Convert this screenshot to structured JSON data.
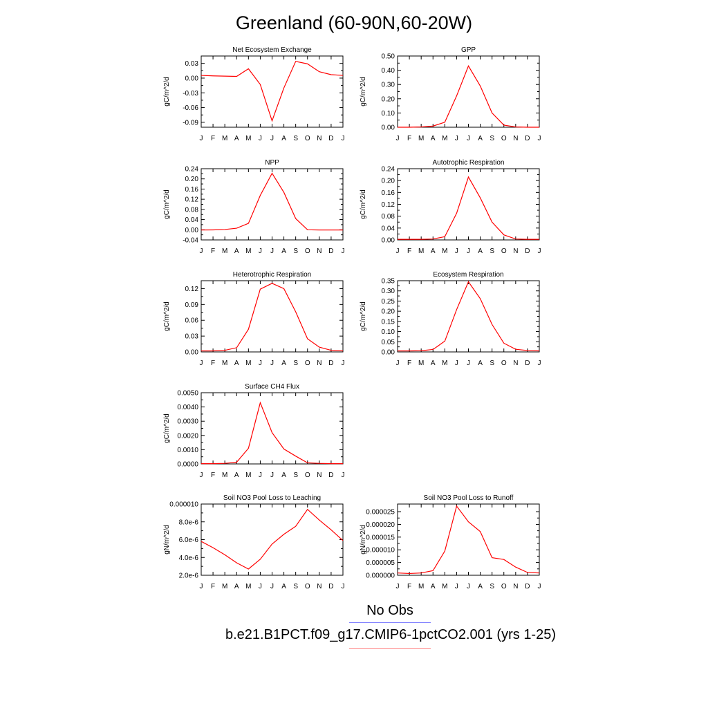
{
  "page": {
    "title": "Greenland (60-90N,60-20W)",
    "legend": {
      "obs_label": "No Obs",
      "obs_color": "#7f7fff",
      "case_label": "b.e21.B1PCT.f09_g17.CMIP6-1pctCO2.001 (yrs 1-25)",
      "case_color": "#ff7f7f"
    }
  },
  "chart_data": [
    {
      "type": "line",
      "title": "Net Ecosystem Exchange",
      "ylabel": "gC/m^2/d",
      "x": [
        "J",
        "F",
        "M",
        "A",
        "M",
        "J",
        "J",
        "A",
        "S",
        "O",
        "N",
        "D",
        "J"
      ],
      "ylim": [
        -0.1,
        0.045
      ],
      "yticks": [
        0.03,
        0.0,
        -0.03,
        -0.06,
        -0.09
      ],
      "yticklabels": [
        "0.03",
        "0.00",
        "-0.03",
        "-0.06",
        "-0.09"
      ],
      "series": [
        {
          "color": "#ff0000",
          "values": [
            0.0055,
            0.0045,
            0.004,
            0.0035,
            0.019,
            -0.013,
            -0.087,
            -0.02,
            0.034,
            0.029,
            0.013,
            0.007,
            0.0055
          ]
        }
      ]
    },
    {
      "type": "line",
      "title": "GPP",
      "ylabel": "gC/m^2/d",
      "x": [
        "J",
        "F",
        "M",
        "A",
        "M",
        "J",
        "J",
        "A",
        "S",
        "O",
        "N",
        "D",
        "J"
      ],
      "ylim": [
        0.0,
        0.5
      ],
      "yticks": [
        0.0,
        0.1,
        0.2,
        0.3,
        0.4,
        0.5
      ],
      "yticklabels": [
        "0.00",
        "0.10",
        "0.20",
        "0.30",
        "0.40",
        "0.50"
      ],
      "series": [
        {
          "color": "#ff0000",
          "values": [
            0.0,
            0.0,
            0.002,
            0.008,
            0.035,
            0.22,
            0.43,
            0.29,
            0.1,
            0.015,
            0.002,
            0.0,
            0.0
          ]
        }
      ]
    },
    {
      "type": "line",
      "title": "NPP",
      "ylabel": "gC/m^2/d",
      "x": [
        "J",
        "F",
        "M",
        "A",
        "M",
        "J",
        "J",
        "A",
        "S",
        "O",
        "N",
        "D",
        "J"
      ],
      "ylim": [
        -0.04,
        0.24
      ],
      "yticks": [
        -0.04,
        0.0,
        0.04,
        0.08,
        0.12,
        0.16,
        0.2,
        0.24
      ],
      "yticklabels": [
        "-0.04",
        "0.00",
        "0.04",
        "0.08",
        "0.12",
        "0.16",
        "0.20",
        "0.24"
      ],
      "series": [
        {
          "color": "#ff0000",
          "values": [
            -0.001,
            -0.0005,
            0.001,
            0.006,
            0.025,
            0.135,
            0.222,
            0.147,
            0.044,
            0.0,
            -0.001,
            -0.001,
            -0.001
          ]
        }
      ]
    },
    {
      "type": "line",
      "title": "Autotrophic Respiration",
      "ylabel": "gC/m^2/d",
      "x": [
        "J",
        "F",
        "M",
        "A",
        "M",
        "J",
        "J",
        "A",
        "S",
        "O",
        "N",
        "D",
        "J"
      ],
      "ylim": [
        0.0,
        0.24
      ],
      "yticks": [
        0.0,
        0.04,
        0.08,
        0.12,
        0.16,
        0.2,
        0.24
      ],
      "yticklabels": [
        "0.00",
        "0.04",
        "0.08",
        "0.12",
        "0.16",
        "0.20",
        "0.24"
      ],
      "series": [
        {
          "color": "#ff0000",
          "values": [
            0.002,
            0.002,
            0.002,
            0.003,
            0.011,
            0.09,
            0.212,
            0.142,
            0.06,
            0.017,
            0.003,
            0.002,
            0.002
          ]
        }
      ]
    },
    {
      "type": "line",
      "title": "Heterotrophic Respiration",
      "ylabel": "gC/m^2/d",
      "x": [
        "J",
        "F",
        "M",
        "A",
        "M",
        "J",
        "J",
        "A",
        "S",
        "O",
        "N",
        "D",
        "J"
      ],
      "ylim": [
        0.0,
        0.135
      ],
      "yticks": [
        0.0,
        0.03,
        0.06,
        0.09,
        0.12
      ],
      "yticklabels": [
        "0.00",
        "0.03",
        "0.06",
        "0.09",
        "0.12"
      ],
      "series": [
        {
          "color": "#ff0000",
          "values": [
            0.002,
            0.002,
            0.003,
            0.008,
            0.043,
            0.119,
            0.13,
            0.12,
            0.076,
            0.025,
            0.009,
            0.003,
            0.002
          ]
        }
      ]
    },
    {
      "type": "line",
      "title": "Ecosystem Respiration",
      "ylabel": "gC/m^2/d",
      "x": [
        "J",
        "F",
        "M",
        "A",
        "M",
        "J",
        "J",
        "A",
        "S",
        "O",
        "N",
        "D",
        "J"
      ],
      "ylim": [
        0.0,
        0.35
      ],
      "yticks": [
        0.0,
        0.05,
        0.1,
        0.15,
        0.2,
        0.25,
        0.3,
        0.35
      ],
      "yticklabels": [
        "0.00",
        "0.05",
        "0.10",
        "0.15",
        "0.20",
        "0.25",
        "0.30",
        "0.35"
      ],
      "series": [
        {
          "color": "#ff0000",
          "values": [
            0.005,
            0.005,
            0.006,
            0.012,
            0.053,
            0.208,
            0.345,
            0.262,
            0.135,
            0.043,
            0.013,
            0.007,
            0.005
          ]
        }
      ]
    },
    {
      "type": "line",
      "title": "Surface CH4 Flux",
      "ylabel": "gC/m^2/d",
      "x": [
        "J",
        "F",
        "M",
        "A",
        "M",
        "J",
        "J",
        "A",
        "S",
        "O",
        "N",
        "D",
        "J"
      ],
      "ylim": [
        0.0,
        0.005
      ],
      "yticks": [
        0.0,
        0.001,
        0.002,
        0.003,
        0.004,
        0.005
      ],
      "yticklabels": [
        "0.0000",
        "0.0010",
        "0.0020",
        "0.0030",
        "0.0040",
        "0.0050"
      ],
      "series": [
        {
          "color": "#ff0000",
          "values": [
            2e-05,
            2e-05,
            4e-05,
            0.00012,
            0.0011,
            0.0043,
            0.0022,
            0.00105,
            0.00055,
            8e-05,
            4e-05,
            2e-05,
            2e-05
          ]
        }
      ]
    },
    {
      "type": "line",
      "title": "Soil NO3 Pool Loss to Leaching",
      "ylabel": "gN/m^2/d",
      "x": [
        "J",
        "F",
        "M",
        "A",
        "M",
        "J",
        "J",
        "A",
        "S",
        "O",
        "N",
        "D",
        "J"
      ],
      "ylim": [
        2e-06,
        1e-05
      ],
      "yticks": [
        2e-06,
        4e-06,
        6e-06,
        8e-06,
        1e-05
      ],
      "yticklabels": [
        "2.0e-6",
        "4.0e-6",
        "6.0e-6",
        "8.0e-6",
        "0.000010"
      ],
      "series": [
        {
          "color": "#ff0000",
          "values": [
            5.8e-06,
            5.1e-06,
            4.3e-06,
            3.4e-06,
            2.7e-06,
            3.8e-06,
            5.5e-06,
            6.6e-06,
            7.5e-06,
            9.4e-06,
            8.2e-06,
            7.1e-06,
            5.9e-06
          ]
        }
      ]
    },
    {
      "type": "line",
      "title": "Soil NO3 Pool Loss to Runoff",
      "ylabel": "gN/m^2/d",
      "x": [
        "J",
        "F",
        "M",
        "A",
        "M",
        "J",
        "J",
        "A",
        "S",
        "O",
        "N",
        "D",
        "J"
      ],
      "ylim": [
        0.0,
        2.8e-05
      ],
      "yticks": [
        0.0,
        5e-06,
        1e-05,
        1.5e-05,
        2e-05,
        2.5e-05
      ],
      "yticklabels": [
        "0.000000",
        "0.000005",
        "0.000010",
        "0.000015",
        "0.000020",
        "0.000025"
      ],
      "series": [
        {
          "color": "#ff0000",
          "values": [
            9e-07,
            7e-07,
            9e-07,
            1.8e-06,
            9.5e-06,
            2.72e-05,
            2.1e-05,
            1.72e-05,
            6.9e-06,
            6.2e-06,
            3.2e-06,
            1.1e-06,
            9e-07
          ]
        }
      ]
    }
  ]
}
